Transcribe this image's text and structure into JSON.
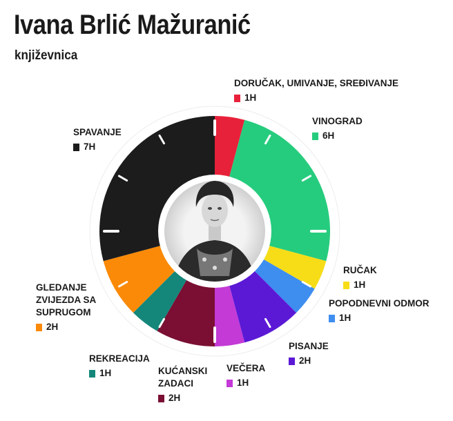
{
  "header": {
    "title": "Ivana Brlić Mažuranić",
    "subtitle": "književnica"
  },
  "chart_data": {
    "type": "pie",
    "variant": "24-hour clock donut",
    "center_image": "portrait-photo",
    "slices": [
      {
        "label": "DORUČAK, UMIVANJE, SREĐIVANJE",
        "value": 1,
        "value_label": "1h",
        "color": "#e8213a"
      },
      {
        "label": "VINOGRAD",
        "value": 6,
        "value_label": "6h",
        "color": "#26cc7d"
      },
      {
        "label": "RUČAK",
        "value": 1,
        "value_label": "1h",
        "color": "#f7dc18"
      },
      {
        "label": "POPODNEVNI ODMOR",
        "value": 1,
        "value_label": "1h",
        "color": "#3e8ef0"
      },
      {
        "label": "PISANJE",
        "value": 2,
        "value_label": "2h",
        "color": "#5b19d6"
      },
      {
        "label": "VEČERA",
        "value": 1,
        "value_label": "1h",
        "color": "#c33ad6"
      },
      {
        "label": "KUĆANSKI ZADACI",
        "value": 2,
        "value_label": "2h",
        "color": "#7a0f33"
      },
      {
        "label": "REKREACIJA",
        "value": 1,
        "value_label": "1h",
        "color": "#14877a"
      },
      {
        "label": "GLEDANJE ZVIJEZDA SA SUPRUGOM",
        "value": 2,
        "value_label": "2h",
        "color": "#fb8a08"
      },
      {
        "label": "SPAVANJE",
        "value": 7,
        "value_label": "7h",
        "color": "#1c1c1c"
      }
    ]
  }
}
